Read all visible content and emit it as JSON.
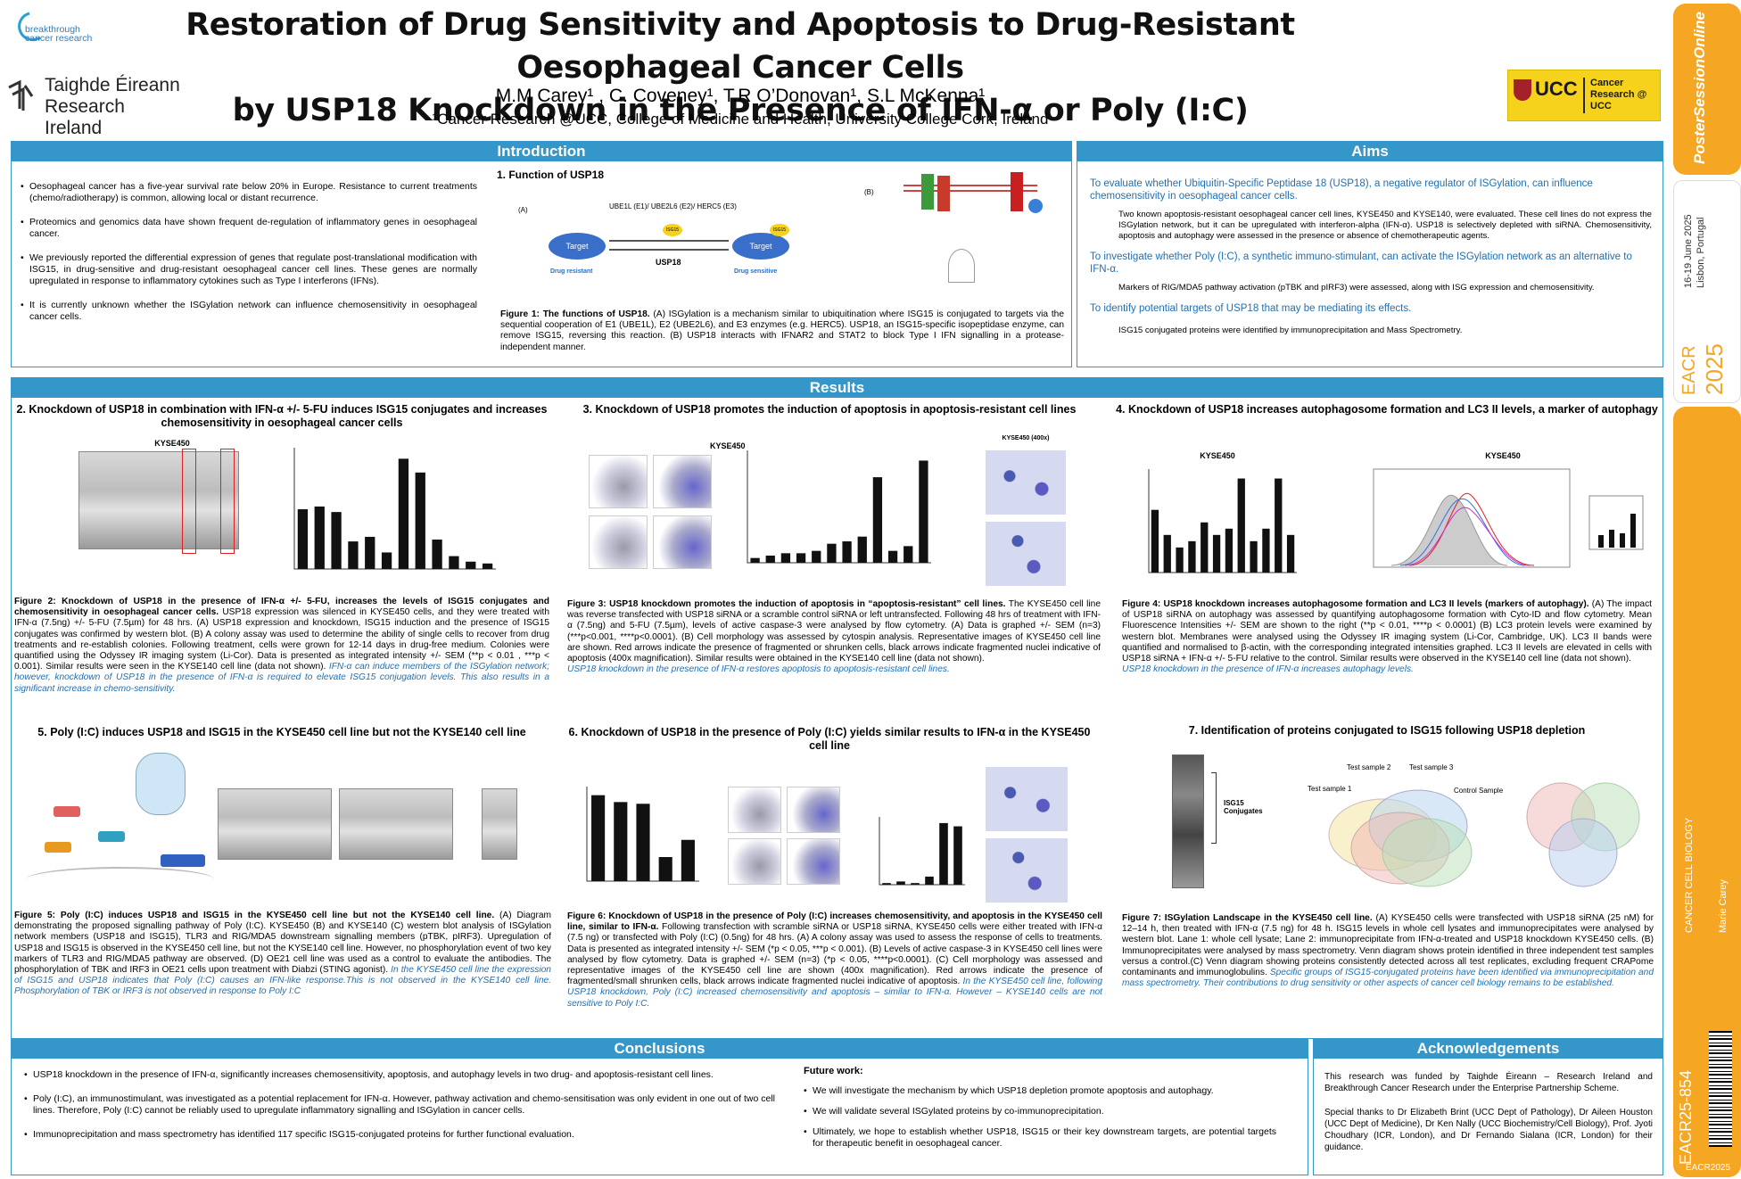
{
  "header": {
    "title_line1": "Restoration of Drug Sensitivity and Apoptosis to Drug-Resistant Oesophageal Cancer Cells",
    "title_line2": "by USP18 Knockdown in the Presence of IFN-α or Poly (I:C)",
    "authors": "M.M Carey¹ , C. Coveney¹, T.R O’Donovan¹, S.L McKenna¹",
    "affiliation": "¹Cancer Research @UCC, College of Medicine and Health, University College Cork, Ireland",
    "logo_breakthrough": "breakthrough cancer research",
    "logo_taighde_1": "Taighde Éireann",
    "logo_taighde_2": "Research Ireland",
    "logo_ucc_1": "UCC",
    "logo_ucc_2": "Cancer Research @ UCC"
  },
  "sidebar": {
    "brand": "PosterSessionOnline",
    "dates": "16-19 June 2025",
    "location": "Lisbon, Portugal",
    "eacr": "EACR",
    "year": "2025",
    "topic": "CANCER CELL BIOLOGY",
    "author": "Marie Carey",
    "code": "EACR25-854",
    "footer": "EACR2025"
  },
  "introduction": {
    "header": "Introduction",
    "bullets": [
      "Oesophageal cancer has a five-year survival rate below 20% in Europe. Resistance to current treatments (chemo/radiotherapy) is common, allowing local or distant recurrence.",
      "Proteomics and genomics data have shown frequent de-regulation of inflammatory genes in oesophageal cancer.",
      "We previously reported the differential expression of genes that regulate post-translational modification with ISG15, in drug-sensitive and drug-resistant oesophageal cancer cell lines. These genes are normally upregulated in response to inflammatory cytokines such as Type I interferons (IFNs).",
      "It is currently unknown whether the ISGylation network can influence chemosensitivity in oesophageal cancer cells."
    ],
    "fig_title": "1. Function of USP18",
    "fig_enzymes": "UBE1L (E1)/ UBE2L6 (E2)/ HERC5 (E3)",
    "fig_target": "Target",
    "fig_usp18": "USP18",
    "fig_isg15": "ISG15",
    "fig_resistant": "Drug resistant",
    "fig_sensitive": "Drug sensitive",
    "fig_a": "(A)",
    "fig_b": "(B)",
    "caption_bold": "Figure 1: The functions of USP18.",
    "caption": " (A) ISGylation is a mechanism similar to ubiquitination where ISG15 is conjugated to targets via the sequential cooperation of E1 (UBE1L), E2 (UBE2L6), and E3 enzymes (e.g. HERC5). USP18, an ISG15-specific isopeptidase enzyme, can remove ISG15, reversing this reaction. (B) USP18 interacts with IFNAR2 and STAT2 to block Type I IFN signalling in a protease-independent manner."
  },
  "aims": {
    "header": "Aims",
    "items": [
      {
        "head": "To evaluate whether Ubiquitin-Specific Peptidase 18 (USP18), a negative regulator of ISGylation, can influence chemosensitivity in oesophageal cancer cells.",
        "text": "Two known apoptosis-resistant oesophageal cancer cell lines, KYSE450 and KYSE140, were evaluated. These cell lines do not express the ISGylation network, but it can be upregulated with interferon-alpha (IFN-α). USP18 is selectively depleted with siRNA. Chemosensitivity, apoptosis and autophagy were assessed in the presence or absence of chemotherapeutic agents."
      },
      {
        "head": "To investigate whether Poly (I:C), a synthetic immuno-stimulant, can activate the ISGylation network as an alternative to IFN-α.",
        "text": "Markers of RIG/MDA5 pathway activation (pTBK and pIRF3) were assessed, along with ISG expression and chemosensitivity."
      },
      {
        "head": "To identify potential targets of USP18 that may be mediating its effects.",
        "text": "ISG15 conjugated proteins were identified by immunoprecipitation and Mass Spectrometry."
      }
    ]
  },
  "results": {
    "header": "Results",
    "p2": {
      "title": "2. Knockdown of USP18 in combination with IFN-α +/- 5-FU induces ISG15 conjugates and increases chemosensitivity in oesophageal cancer cells",
      "label": "KYSE450",
      "cap_bold": "Figure 2: Knockdown of USP18 in the presence of IFN-α +/- 5-FU, increases the levels of ISG15 conjugates and chemosensitivity in oesophageal cancer cells.",
      "cap": " USP18 expression was silenced in KYSE450 cells, and they were treated with IFN-α (7.5ng) +/- 5-FU (7.5µm) for 48 hrs. (A) USP18 expression and knockdown, ISG15 induction and the presence of ISG15 conjugates was confirmed by western blot. (B) A colony assay was used to determine the ability of single cells to recover from drug treatments and re-establish colonies. Following treatment, cells were grown for 12-14 days in drug-free medium. Colonies were quantified using the Odyssey IR imaging system (Li-Cor). Data is presented as integrated intensity +/- SEM (**p < 0.01 , ***p < 0.001). Similar results were seen in the KYSE140 cell line (data not shown). ",
      "cap_blue": "IFN-α can induce members of the ISGylation network; however, knockdown of USP18 in the presence of IFN-α is required to elevate ISG15 conjugation levels. This also results in a significant increase in chemo-sensitivity."
    },
    "p3": {
      "title": "3. Knockdown of USP18 promotes the induction of apoptosis in apoptosis-resistant cell lines",
      "label": "KYSE450",
      "label2": "KYSE450 (400x)",
      "cap_bold": "Figure 3: USP18 knockdown promotes the induction of apoptosis in “apoptosis-resistant” cell lines.",
      "cap": " The KYSE450 cell line was reverse transfected with USP18 siRNA or a scramble control siRNA or left untransfected. Following 48 hrs of treatment with IFN-α (7.5ng) and 5-FU (7.5µm), levels of active caspase-3 were analysed by flow cytometry. (A) Data is graphed +/- SEM (n=3) (***p<0.001, ****p<0.0001). (B) Cell morphology was assessed by cytospin analysis. Representative images of KYSE450 cell line are shown. Red arrows indicate the presence of fragmented or shrunken cells, black arrows indicate fragmented nuclei indicative of apoptosis (400x magnification). Similar results were obtained in the KYSE140 cell line (data not shown).",
      "cap_blue": "USP18 knockdown in the presence of IFN-α restores apoptosis to apoptosis-resistant cell lines."
    },
    "p4": {
      "title": "4. Knockdown of USP18 increases autophagosome formation and LC3 II levels, a marker of autophagy",
      "label": "KYSE450",
      "cap_bold": "Figure 4: USP18 knockdown increases autophagosome formation and LC3 II levels (markers of autophagy).",
      "cap": " (A) The impact of USP18 siRNA on autophagy was assessed by quantifying autophagosome formation with Cyto-ID and flow cytometry. Mean Fluorescence Intensities +/- SEM are shown to the right (**p < 0.01, ****p < 0.0001) (B) LC3 protein levels were examined by western blot. Membranes were analysed using the Odyssey IR imaging system (Li-Cor, Cambridge, UK). LC3 II bands were quantified and normalised to β-actin, with the corresponding integrated intensities graphed. LC3 II levels are elevated in cells with USP18 siRNA + IFN-α +/- 5-FU relative to the control. Similar results were observed in the KYSE140 cell line (data not shown).",
      "cap_blue": "USP18 knockdown in the presence of IFN-α increases autophagy levels."
    },
    "p5": {
      "title": "5. Poly (I:C) induces USP18 and ISG15 in the KYSE450 cell line but not the KYSE140 cell line",
      "cap_bold": "Figure 5: Poly (I:C) induces USP18 and ISG15 in the KYSE450 cell line but not the KYSE140 cell line.",
      "cap": " (A) Diagram demonstrating the proposed signalling pathway of Poly (I:C).  KYSE450 (B) and KYSE140 (C) western blot analysis of ISGylation network members (USP18 and ISG15), TLR3 and RIG/MDA5 downstream signalling members (pTBK, pIRF3). Upregulation of USP18 and ISG15 is observed in the KYSE450 cell line, but not the KYSE140 cell line. However, no phosphorylation event of two key markers of TLR3 and RIG/MDA5 pathway are observed. (D) OE21 cell line was used as a control to evaluate the antibodies. The phosphorylation of TBK and IRF3 in OE21 cells upon treatment with Diabzi (STING agonist). ",
      "cap_blue": "In the KYSE450 cell line the expression of ISG15 and USP18 indicates that Poly (I:C) causes an IFN-like response.This is not observed in the KYSE140 cell line. Phosphorylation of TBK or IRF3 is not observed in response to Poly I:C"
    },
    "p6": {
      "title": "6. Knockdown of USP18 in the presence of Poly (I:C) yields similar results to IFN-α in the KYSE450 cell line",
      "cap_bold": "Figure 6: Knockdown of USP18 in the presence of Poly (I:C) increases chemosensitivity, and apoptosis in the KYSE450 cell line, similar to IFN-α.",
      "cap": " Following transfection with scramble siRNA or USP18 siRNA, KYSE450 cells were either treated with IFN-α (7.5 ng) or transfected with Poly (I:C) (0.5ng) for 48 hrs. (A) A colony assay was used to assess the response of cells to treatments. Data is presented as integrated intensity +/- SEM (*p < 0.05, ***p < 0.001). (B) Levels of active caspase-3 in KYSE450 cell lines were analysed by flow cytometry. Data is graphed +/- SEM (n=3) (*p < 0.05, ****p<0.0001). (C) Cell morphology was assessed and representative images of the KYSE450 cell line are shown (400x magnification). Red arrows indicate the presence of fragmented/small shrunken cells, black arrows indicate fragmented nuclei indicative of apoptosis. ",
      "cap_blue": "In the KYSE450 cell line, following USP18 knockdown, Poly (I:C) increased chemosensitivity and apoptosis – similar to IFN-α. However –  KYSE140 cells are not sensitive to Poly I:C."
    },
    "p7": {
      "title": "7. Identification of proteins conjugated to ISG15 following USP18 depletion",
      "isg_label": "ISG15 Conjugates",
      "cap_bold": "Figure 7: ISGylation Landscape in the KYSE450 cell line.",
      "cap": " (A) KYSE450 cells were transfected with USP18 siRNA (25 nM) for 12–14 h, then treated with IFN-α (7.5 ng) for 48 h. ISG15 levels in whole cell lysates and immunoprecipitates were analysed by western blot. Lane 1: whole cell lysate; Lane 2: immunoprecipitate from IFN-α-treated and USP18 knockdown KYSE450 cells. (B) Immunoprecipitates were analysed by mass spectrometry. Venn diagram shows protein identified in three independent test samples versus a control.(C) Venn diagram showing proteins consistently detected across all test replicates, excluding frequent CRAPome contaminants and immunoglobulins. ",
      "cap_blue": "Specific groups of ISG15-conjugated proteins have been identified via immunoprecipitation and mass spectrometry. Their contributions to drug sensitivity or other aspects of cancer cell biology remains to be established.",
      "venn_labels": [
        "Test sample 2",
        "Test sample 3",
        "Test sample 1",
        "Control Sample"
      ]
    }
  },
  "conclusions": {
    "header": "Conclusions",
    "bullets": [
      "USP18 knockdown in the presence of IFN-α, significantly increases chemosensitivity, apoptosis, and autophagy levels in two drug- and apoptosis-resistant cell lines.",
      "Poly (I:C), an immunostimulant, was investigated as a potential replacement for IFN-α. However, pathway activation and chemo-sensitisation was only evident in one out of two cell lines. Therefore, Poly (I:C) cannot be reliably used to upregulate inflammatory signalling and ISGylation in cancer cells.",
      "Immunoprecipitation and mass spectrometry has identified 117 specific ISG15-conjugated proteins for further functional evaluation."
    ],
    "future_title": "Future work:",
    "future": [
      "We will investigate the mechanism by which USP18 depletion promote apoptosis and autophagy.",
      "We will validate several ISGylated proteins by co-immunoprecipitation.",
      "Ultimately, we hope to establish whether USP18, ISG15 or their key downstream targets, are potential targets for therapeutic benefit in oesophageal cancer."
    ]
  },
  "acknowledgements": {
    "header": "Acknowledgements",
    "p1": "This research was funded by Taighde Éireann – Research Ireland and Breakthrough Cancer Research under the Enterprise Partnership Scheme.",
    "p2": "Special thanks to Dr Elizabeth Brint (UCC Dept of Pathology), Dr Aileen Houston (UCC Dept of Medicine), Dr Ken Nally (UCC Biochemistry/Cell Biology), Prof. Jyoti Choudhary (ICR, London), and Dr Fernando Sialana (ICR, London) for their guidance."
  },
  "colors": {
    "accent": "#3596c9",
    "blue_text": "#1e6fb5",
    "sidebar": "#f5a623",
    "bar": "#111111"
  },
  "chart_data": [
    {
      "type": "bar",
      "title": "KYSE450",
      "values": [
        65,
        68,
        62,
        30,
        35,
        18,
        120,
        105,
        32,
        14,
        8,
        6
      ]
    },
    {
      "type": "bar",
      "values": [
        2,
        3,
        4,
        4,
        5,
        8,
        9,
        11,
        36,
        5,
        7,
        43
      ]
    },
    {
      "type": "bar",
      "values": [
        20,
        12,
        8,
        10,
        16,
        12,
        14,
        30,
        10,
        14,
        30,
        12
      ]
    },
    {
      "type": "bar",
      "values": [
        100,
        92,
        90,
        28,
        48
      ]
    },
    {
      "type": "bar",
      "values": [
        1,
        2,
        1,
        5,
        38,
        36
      ]
    }
  ]
}
